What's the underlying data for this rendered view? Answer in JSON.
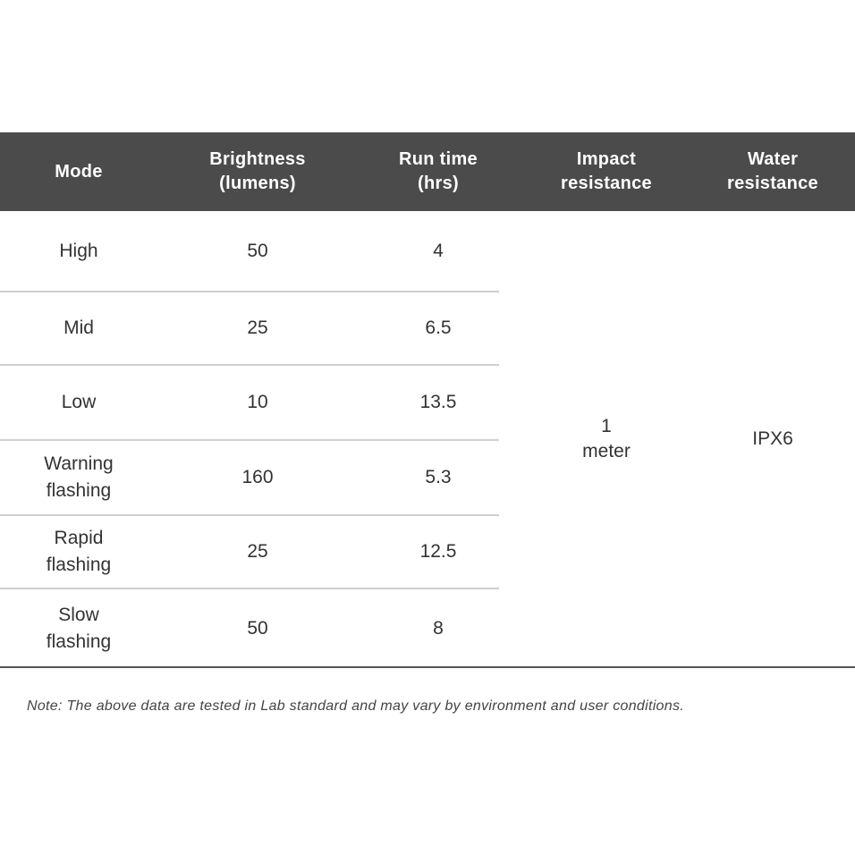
{
  "table": {
    "headers": [
      "Mode",
      "Brightness\n(lumens)",
      "Run time\n(hrs)",
      "Impact\nresistance",
      "Water\nresistance"
    ],
    "rows": [
      {
        "mode": "High",
        "brightness": "50",
        "runtime": "4"
      },
      {
        "mode": "Mid",
        "brightness": "25",
        "runtime": "6.5"
      },
      {
        "mode": "Low",
        "brightness": "10",
        "runtime": "13.5"
      },
      {
        "mode": "Warning\nflashing",
        "brightness": "160",
        "runtime": "5.3"
      },
      {
        "mode": "Rapid\nflashing",
        "brightness": "25",
        "runtime": "12.5"
      },
      {
        "mode": "Slow\nflashing",
        "brightness": "50",
        "runtime": "8"
      }
    ],
    "impact_resistance": "1\nmeter",
    "water_resistance": "IPX6"
  },
  "note": "Note: The above data are tested in Lab standard and may vary by environment and user conditions.",
  "colors": {
    "header_bg": "#4b4b4b",
    "header_text": "#ffffff"
  }
}
